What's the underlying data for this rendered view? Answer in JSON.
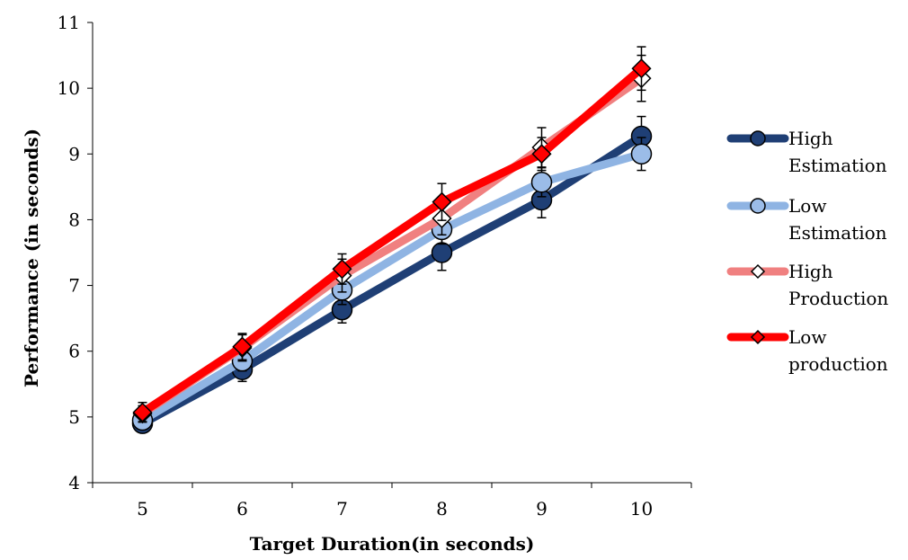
{
  "chart_data": {
    "type": "line",
    "title": "",
    "xlabel": "Target Duration(in seconds)",
    "ylabel": "Performance  (in seconds)",
    "categories": [
      "5",
      "6",
      "7",
      "8",
      "9",
      "10"
    ],
    "x": [
      5,
      6,
      7,
      8,
      9,
      10
    ],
    "ylim": [
      4,
      11
    ],
    "yticks": [
      4,
      5,
      6,
      7,
      8,
      9,
      10,
      11
    ],
    "grid": false,
    "legend_position": "right",
    "series": [
      {
        "name": "High Estimation",
        "name_lines": [
          "High",
          "Estimation"
        ],
        "values": [
          4.9,
          5.72,
          6.63,
          7.5,
          8.3,
          9.27
        ],
        "error": [
          0.1,
          0.18,
          0.2,
          0.27,
          0.27,
          0.3
        ],
        "color": "#1f3f75",
        "marker": "circle",
        "marker_fill": "#1f3f75"
      },
      {
        "name": "Low Estimation",
        "name_lines": [
          "Low",
          "Estimation"
        ],
        "values": [
          4.95,
          5.85,
          6.93,
          7.85,
          8.57,
          9.0
        ],
        "error": [
          0.1,
          0.15,
          0.22,
          0.22,
          0.22,
          0.25
        ],
        "color": "#8fb4e3",
        "marker": "circle",
        "marker_fill": "#9bbce8"
      },
      {
        "name": "High Production",
        "name_lines": [
          "High",
          "Production"
        ],
        "values": [
          5.05,
          6.05,
          7.15,
          8.02,
          9.1,
          10.15
        ],
        "error": [
          0.12,
          0.2,
          0.25,
          0.25,
          0.3,
          0.35
        ],
        "color": "#f08080",
        "marker": "diamond",
        "marker_fill": "#ffffff"
      },
      {
        "name": "Low production",
        "name_lines": [
          "Low",
          "production"
        ],
        "values": [
          5.07,
          6.07,
          7.25,
          8.27,
          9.0,
          10.3
        ],
        "error": [
          0.15,
          0.2,
          0.23,
          0.28,
          0.25,
          0.33
        ],
        "color": "#ff0000",
        "marker": "diamond",
        "marker_fill": "#ff0000"
      }
    ]
  }
}
